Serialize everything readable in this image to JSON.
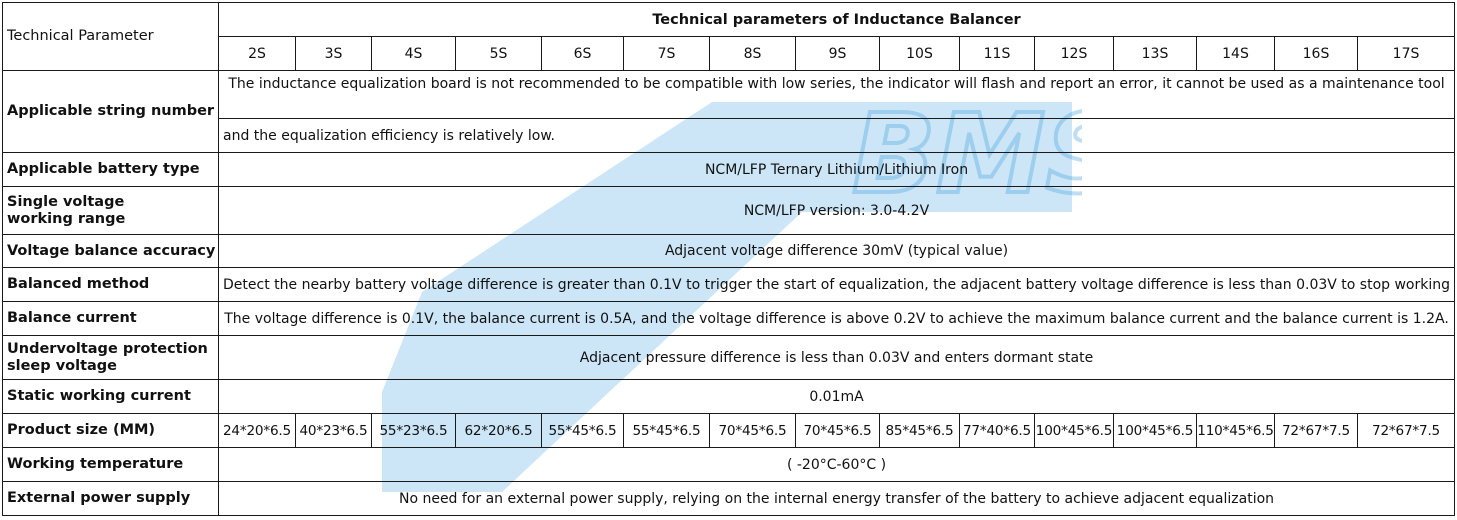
{
  "header": {
    "param_label": "Technical Parameter",
    "title": "Technical parameters of Inductance Balancer",
    "series": [
      "2S",
      "3S",
      "4S",
      "5S",
      "6S",
      "7S",
      "8S",
      "9S",
      "10S",
      "11S",
      "12S",
      "13S",
      "14S",
      "16S",
      "17S"
    ]
  },
  "rows": {
    "string_number": {
      "label": "Applicable string number",
      "text_line1": "The inductance equalization board is not recommended to be compatible with low series, the indicator will flash and report an error, it cannot be used as a maintenance tool",
      "text_line2": "and the equalization efficiency  is  relatively low."
    },
    "battery_type": {
      "label": "Applicable battery type",
      "value": "NCM/LFP Ternary Lithium/Lithium Iron"
    },
    "voltage_range": {
      "label_line1": "Single voltage",
      "label_line2": "working range",
      "value": "NCM/LFP version: 3.0-4.2V"
    },
    "balance_accuracy": {
      "label": "Voltage balance accuracy",
      "value": "Adjacent voltage difference 30mV (typical value)"
    },
    "balanced_method": {
      "label": "Balanced method",
      "value": "Detect the nearby battery voltage difference is greater than 0.1V to trigger the start of equalization,  the adjacent battery voltage difference is less than 0.03V to stop working"
    },
    "balance_current": {
      "label": "Balance current",
      "value": "The voltage difference is 0.1V, the balance current is 0.5A, and the voltage difference is above 0.2V to achieve the maximum balance current and the balance current is 1.2A."
    },
    "undervoltage": {
      "label_line1": "Undervoltage protection",
      "label_line2": "sleep voltage",
      "value": "Adjacent pressure difference is less than 0.03V and enters dormant state"
    },
    "static_current": {
      "label": "Static working current",
      "value": "0.01mA"
    },
    "product_size": {
      "label": "Product size (MM)",
      "values": [
        "24*20*6.5",
        "40*23*6.5",
        "55*23*6.5",
        "62*20*6.5",
        "55*45*6.5",
        "55*45*6.5",
        "70*45*6.5",
        "70*45*6.5",
        "85*45*6.5",
        "77*40*6.5",
        "100*45*6.5",
        "100*45*6.5",
        "110*45*6.5",
        "72*67*7.5",
        "72*67*7.5"
      ]
    },
    "working_temp": {
      "label": "Working temperature",
      "value": "( -20°C-60°C )"
    },
    "power_supply": {
      "label": "External power supply",
      "value": "No need for an external power supply, relying on the internal energy transfer of the battery to achieve adjacent equalization"
    }
  },
  "watermark": {
    "text": "HELTEC BMS",
    "color": "#9fcfee"
  }
}
